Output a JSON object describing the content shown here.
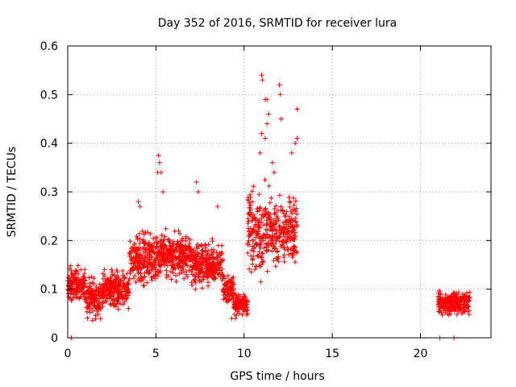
{
  "chart_data": {
    "type": "scatter",
    "title": "Day 352 of 2016, SRMTID for receiver lura",
    "xlabel": "GPS time / hours",
    "ylabel": "SRMTID / TECUs",
    "xlim": [
      0,
      24
    ],
    "ylim": [
      0,
      0.6
    ],
    "xticks": [
      0,
      5,
      10,
      15,
      20
    ],
    "yticks": [
      0,
      0.1,
      0.2,
      0.3,
      0.4,
      0.5,
      0.6
    ],
    "xtick_labels": [
      "0",
      "5",
      "10",
      "15",
      "20"
    ],
    "ytick_labels": [
      "0",
      "0.1",
      "0.2",
      "0.3",
      "0.4",
      "0.5",
      "0.6"
    ],
    "grid": true,
    "marker": "+",
    "series_color": "#ff0000",
    "series": [
      {
        "name": "SRMTID",
        "segments": [
          {
            "x_start": 0.0,
            "x_end": 1.0,
            "center": 0.11,
            "spread": 0.05
          },
          {
            "x_start": 1.0,
            "x_end": 2.0,
            "center": 0.08,
            "spread": 0.05
          },
          {
            "x_start": 2.0,
            "x_end": 3.5,
            "center": 0.1,
            "spread": 0.05
          },
          {
            "x_start": 3.5,
            "x_end": 5.0,
            "center": 0.16,
            "spread": 0.07
          },
          {
            "x_start": 5.0,
            "x_end": 7.0,
            "center": 0.17,
            "spread": 0.06
          },
          {
            "x_start": 7.0,
            "x_end": 8.8,
            "center": 0.15,
            "spread": 0.06
          },
          {
            "x_start": 8.8,
            "x_end": 9.4,
            "center": 0.1,
            "spread": 0.04
          },
          {
            "x_start": 9.4,
            "x_end": 10.2,
            "center": 0.07,
            "spread": 0.03
          },
          {
            "x_start": 10.2,
            "x_end": 11.5,
            "center": 0.22,
            "spread": 0.12
          },
          {
            "x_start": 11.5,
            "x_end": 13.0,
            "center": 0.22,
            "spread": 0.1
          },
          {
            "x_start": 21.0,
            "x_end": 22.8,
            "center": 0.07,
            "spread": 0.03
          }
        ],
        "highlights": [
          {
            "x": 5.15,
            "y": 0.375
          },
          {
            "x": 5.2,
            "y": 0.36
          },
          {
            "x": 5.1,
            "y": 0.34
          },
          {
            "x": 5.3,
            "y": 0.34
          },
          {
            "x": 5.4,
            "y": 0.3
          },
          {
            "x": 7.3,
            "y": 0.32
          },
          {
            "x": 7.4,
            "y": 0.3
          },
          {
            "x": 11.0,
            "y": 0.54
          },
          {
            "x": 11.05,
            "y": 0.53
          },
          {
            "x": 11.2,
            "y": 0.49
          },
          {
            "x": 11.3,
            "y": 0.49
          },
          {
            "x": 12.0,
            "y": 0.52
          },
          {
            "x": 12.05,
            "y": 0.5
          },
          {
            "x": 12.1,
            "y": 0.45
          },
          {
            "x": 11.3,
            "y": 0.44
          },
          {
            "x": 11.4,
            "y": 0.46
          },
          {
            "x": 11.0,
            "y": 0.42
          },
          {
            "x": 11.2,
            "y": 0.41
          },
          {
            "x": 13.0,
            "y": 0.47
          },
          {
            "x": 13.0,
            "y": 0.41
          },
          {
            "x": 12.9,
            "y": 0.4
          },
          {
            "x": 12.7,
            "y": 0.38
          },
          {
            "x": 10.9,
            "y": 0.38
          },
          {
            "x": 11.6,
            "y": 0.36
          },
          {
            "x": 11.7,
            "y": 0.34
          },
          {
            "x": 4.0,
            "y": 0.28
          },
          {
            "x": 4.1,
            "y": 0.27
          },
          {
            "x": 8.5,
            "y": 0.27
          },
          {
            "x": 9.3,
            "y": 0.04
          },
          {
            "x": 9.5,
            "y": 0.04
          },
          {
            "x": 9.7,
            "y": 0.05
          },
          {
            "x": 0.2,
            "y": 0.0
          },
          {
            "x": 21.1,
            "y": 0.0
          },
          {
            "x": 21.9,
            "y": 0.0
          }
        ]
      }
    ]
  }
}
